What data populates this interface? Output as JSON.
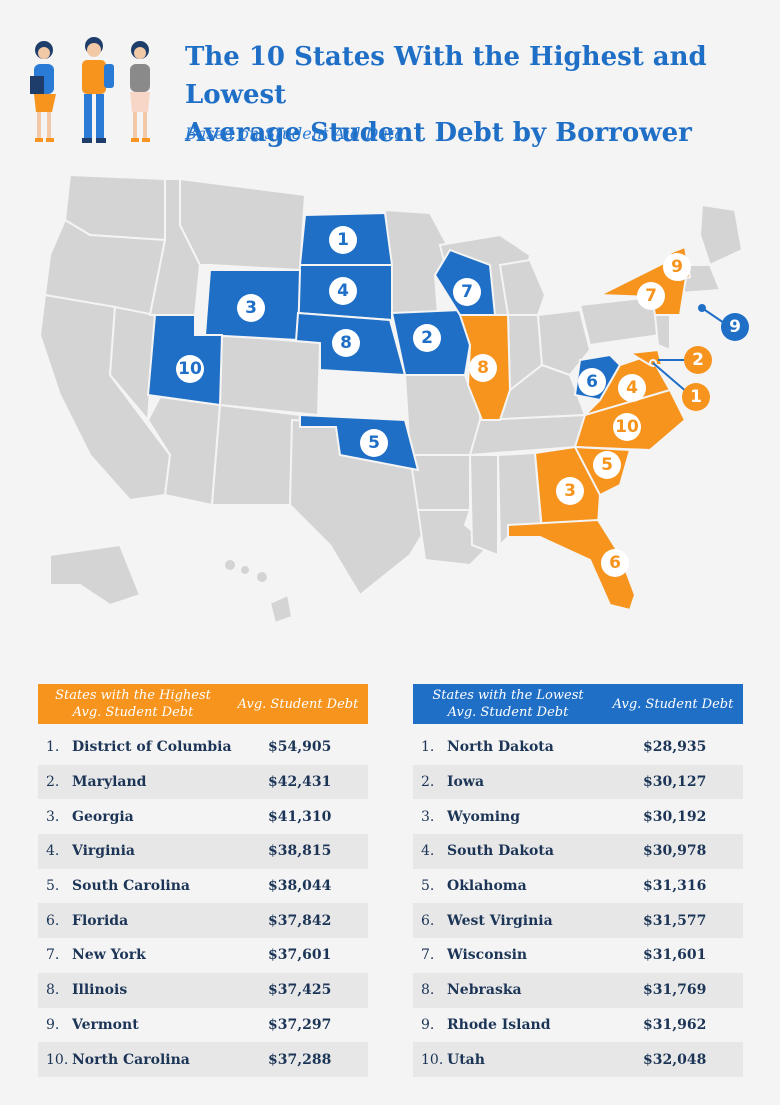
{
  "header": {
    "title_line1": "The 10 States With the Highest and Lowest",
    "title_line2": "Average Student Debt by Borrower",
    "subtitle": "Based on Student Aid Data"
  },
  "colors": {
    "highest": "#f7941d",
    "lowest": "#1f6fc7",
    "neutral": "#d4d4d4"
  },
  "map": {
    "highest_markers": [
      "1",
      "2",
      "3",
      "4",
      "5",
      "6",
      "7",
      "8",
      "9",
      "10"
    ],
    "lowest_markers": [
      "1",
      "2",
      "3",
      "4",
      "5",
      "6",
      "7",
      "8",
      "9",
      "10"
    ]
  },
  "highest_table": {
    "header_line1": "States with the Highest",
    "header_line2": "Avg. Student Debt",
    "value_header": "Avg. Student Debt",
    "rows": [
      {
        "rank": "1.",
        "state": "District of Columbia",
        "value": "$54,905"
      },
      {
        "rank": "2.",
        "state": "Maryland",
        "value": "$42,431"
      },
      {
        "rank": "3.",
        "state": "Georgia",
        "value": "$41,310"
      },
      {
        "rank": "4.",
        "state": "Virginia",
        "value": "$38,815"
      },
      {
        "rank": "5.",
        "state": "South Carolina",
        "value": "$38,044"
      },
      {
        "rank": "6.",
        "state": "Florida",
        "value": "$37,842"
      },
      {
        "rank": "7.",
        "state": "New York",
        "value": "$37,601"
      },
      {
        "rank": "8.",
        "state": "Illinois",
        "value": "$37,425"
      },
      {
        "rank": "9.",
        "state": "Vermont",
        "value": "$37,297"
      },
      {
        "rank": "10.",
        "state": "North Carolina",
        "value": "$37,288"
      }
    ]
  },
  "lowest_table": {
    "header_line1": "States with the Lowest",
    "header_line2": "Avg. Student Debt",
    "value_header": "Avg. Student Debt",
    "rows": [
      {
        "rank": "1.",
        "state": "North Dakota",
        "value": "$28,935"
      },
      {
        "rank": "2.",
        "state": "Iowa",
        "value": "$30,127"
      },
      {
        "rank": "3.",
        "state": "Wyoming",
        "value": "$30,192"
      },
      {
        "rank": "4.",
        "state": "South Dakota",
        "value": "$30,978"
      },
      {
        "rank": "5.",
        "state": "Oklahoma",
        "value": "$31,316"
      },
      {
        "rank": "6.",
        "state": "West Virginia",
        "value": "$31,577"
      },
      {
        "rank": "7.",
        "state": "Wisconsin",
        "value": "$31,601"
      },
      {
        "rank": "8.",
        "state": "Nebraska",
        "value": "$31,769"
      },
      {
        "rank": "9.",
        "state": "Rhode Island",
        "value": "$31,962"
      },
      {
        "rank": "10.",
        "state": "Utah",
        "value": "$32,048"
      }
    ]
  }
}
